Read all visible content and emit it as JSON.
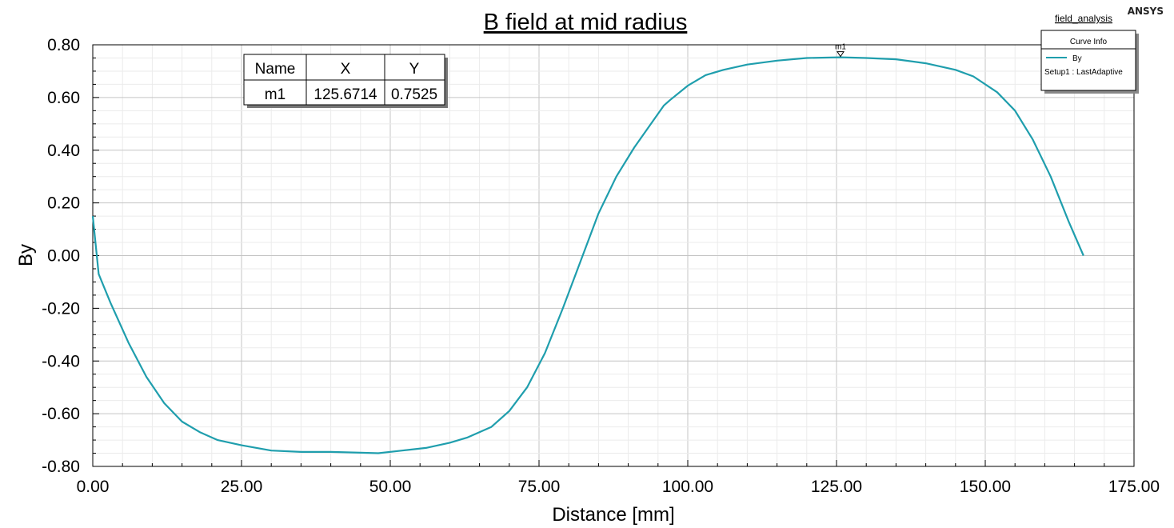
{
  "brand": "ANSYS",
  "plot_name": "field_analysis",
  "curve_info": {
    "title": "Curve Info",
    "entries": [
      {
        "name": "By",
        "solution": "Setup1 : LastAdaptive",
        "color": "#1f9ead"
      }
    ]
  },
  "marker_table": {
    "headers": [
      "Name",
      "X",
      "Y"
    ],
    "rows": [
      [
        "m1",
        "125.6714",
        "0.7525"
      ]
    ]
  },
  "marker_label": "m1",
  "chart_data": {
    "type": "line",
    "title": "B field at mid radius",
    "xlabel": "Distance [mm]",
    "ylabel": "By",
    "xlim": [
      0,
      175
    ],
    "ylim": [
      -0.8,
      0.8
    ],
    "x_ticks": [
      "0.00",
      "25.00",
      "50.00",
      "75.00",
      "100.00",
      "125.00",
      "150.00",
      "175.00"
    ],
    "y_ticks": [
      "0.80",
      "0.60",
      "0.40",
      "0.20",
      "0.00",
      "-0.20",
      "-0.40",
      "-0.60",
      "-0.80"
    ],
    "grid": true,
    "legend": "top-right",
    "series": [
      {
        "name": "By",
        "color": "#1f9ead",
        "x": [
          0,
          1,
          3,
          6,
          9,
          12,
          15,
          18,
          21,
          25,
          30,
          35,
          40,
          45,
          48,
          52,
          56,
          60,
          63,
          67,
          70,
          73,
          76,
          79,
          82,
          85,
          88,
          91,
          93.5,
          96,
          97,
          100,
          103,
          106,
          110,
          115,
          120,
          125.6714,
          130,
          135,
          140,
          145,
          148,
          152,
          155,
          158,
          161,
          164,
          166.5
        ],
        "y": [
          0.15,
          -0.07,
          -0.18,
          -0.33,
          -0.46,
          -0.56,
          -0.63,
          -0.67,
          -0.7,
          -0.72,
          -0.74,
          -0.745,
          -0.745,
          -0.748,
          -0.75,
          -0.74,
          -0.73,
          -0.71,
          -0.69,
          -0.65,
          -0.59,
          -0.5,
          -0.37,
          -0.2,
          -0.02,
          0.16,
          0.3,
          0.41,
          0.49,
          0.57,
          0.59,
          0.645,
          0.685,
          0.705,
          0.725,
          0.74,
          0.75,
          0.7525,
          0.75,
          0.745,
          0.73,
          0.705,
          0.68,
          0.62,
          0.55,
          0.44,
          0.3,
          0.13,
          0.0
        ]
      }
    ],
    "markers": [
      {
        "name": "m1",
        "x": 125.6714,
        "y": 0.7525
      }
    ]
  }
}
